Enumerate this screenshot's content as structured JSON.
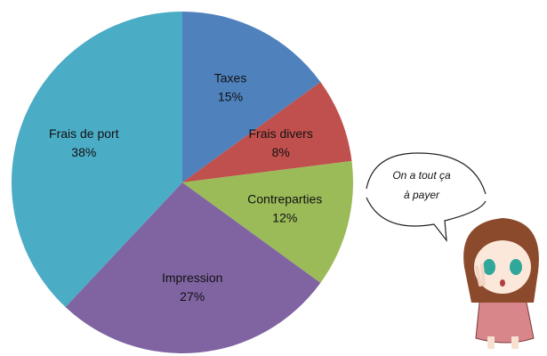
{
  "chart_data": {
    "type": "pie",
    "categories": [
      "Taxes",
      "Frais divers",
      "Contreparties",
      "Impression",
      "Frais de port"
    ],
    "values": [
      15,
      8,
      12,
      27,
      38
    ],
    "value_labels": [
      "15%",
      "8%",
      "12%",
      "27%",
      "38%"
    ],
    "colors": [
      "#4f81bd",
      "#c0504d",
      "#9bbb59",
      "#8064a2",
      "#4bacc6"
    ],
    "annotation": [
      "On a tout ça",
      "à payer"
    ]
  }
}
